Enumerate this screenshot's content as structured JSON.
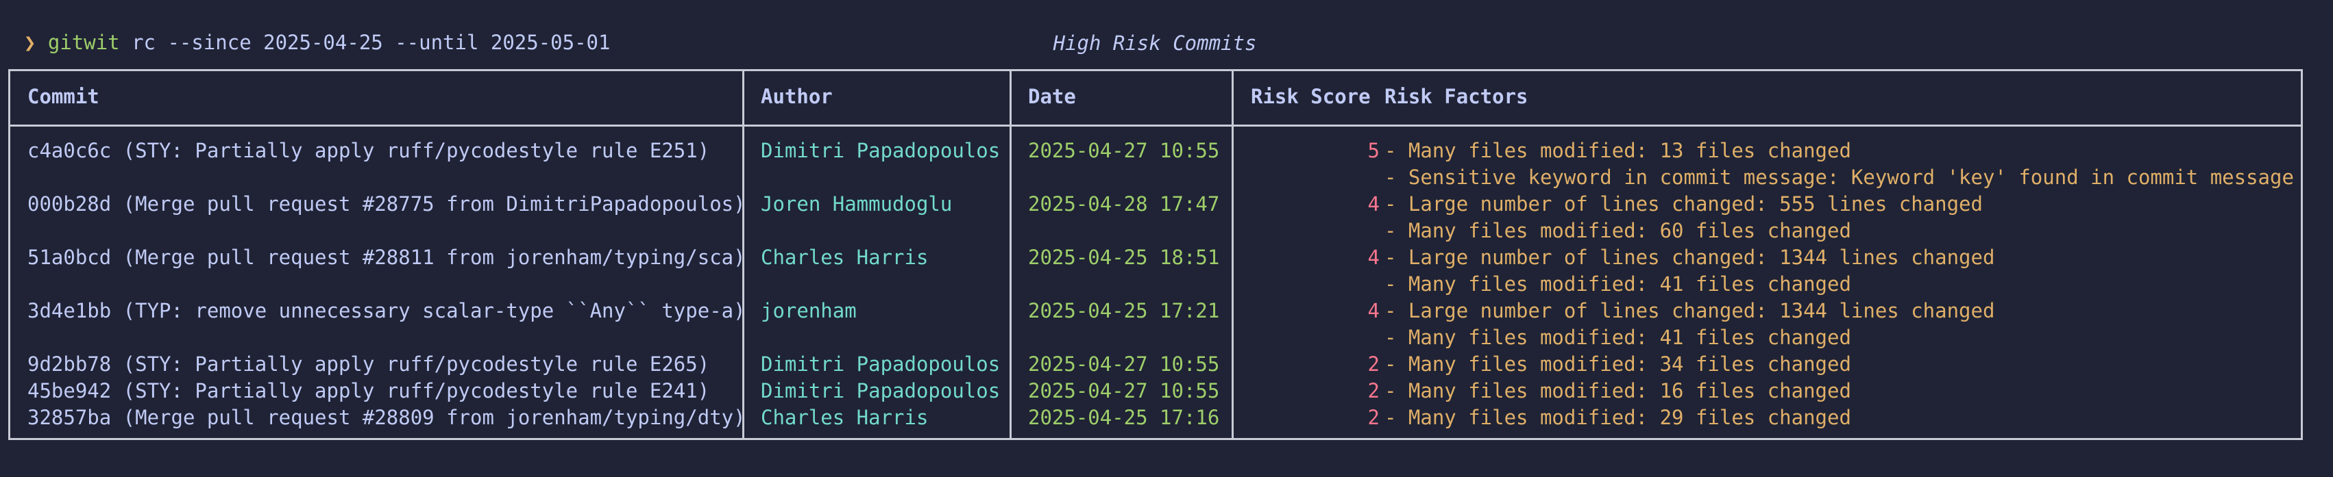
{
  "prompt": {
    "arrow": "❯",
    "command": "gitwit",
    "args": " rc --since 2025-04-25 --until 2025-05-01"
  },
  "table": {
    "title": "High Risk Commits",
    "headers": {
      "commit": "Commit",
      "author": "Author",
      "date": "Date",
      "score": "Risk Score",
      "factors": "Risk Factors"
    },
    "rows": [
      {
        "commit": "c4a0c6c (STY: Partially apply ruff/pycodestyle rule E251)",
        "author": "Dimitri Papadopoulos",
        "date": "2025-04-27 10:55",
        "score": "5",
        "factors": [
          "- Many files modified: 13 files changed",
          "- Sensitive keyword in commit message: Keyword 'key' found in commit message"
        ]
      },
      {
        "commit": "000b28d (Merge pull request #28775 from DimitriPapadopoulos)",
        "author": "Joren Hammudoglu",
        "date": "2025-04-28 17:47",
        "score": "4",
        "factors": [
          "- Large number of lines changed: 555 lines changed",
          "- Many files modified: 60 files changed"
        ]
      },
      {
        "commit": "51a0bcd (Merge pull request #28811 from jorenham/typing/sca)",
        "author": "Charles Harris",
        "date": "2025-04-25 18:51",
        "score": "4",
        "factors": [
          "- Large number of lines changed: 1344 lines changed",
          "- Many files modified: 41 files changed"
        ]
      },
      {
        "commit": "3d4e1bb (TYP: remove unnecessary scalar-type ``Any`` type-a)",
        "author": "jorenham",
        "date": "2025-04-25 17:21",
        "score": "4",
        "factors": [
          "- Large number of lines changed: 1344 lines changed",
          "- Many files modified: 41 files changed"
        ]
      },
      {
        "commit": "9d2bb78 (STY: Partially apply ruff/pycodestyle rule E265)",
        "author": "Dimitri Papadopoulos",
        "date": "2025-04-27 10:55",
        "score": "2",
        "factors": [
          "- Many files modified: 34 files changed"
        ]
      },
      {
        "commit": "45be942 (STY: Partially apply ruff/pycodestyle rule E241)",
        "author": "Dimitri Papadopoulos",
        "date": "2025-04-27 10:55",
        "score": "2",
        "factors": [
          "- Many files modified: 16 files changed"
        ]
      },
      {
        "commit": "32857ba (Merge pull request #28809 from jorenham/typing/dty)",
        "author": "Charles Harris",
        "date": "2025-04-25 17:16",
        "score": "2",
        "factors": [
          "- Many files modified: 29 files changed"
        ]
      }
    ]
  },
  "colors": {
    "background": "#1f2335",
    "text": "#c0caf5",
    "border": "#c8cbd6",
    "author": "#73daca",
    "date": "#9ece6a",
    "score": "#f7768e",
    "factor": "#e0af68",
    "prompt_arrow": "#e0af68",
    "command": "#9ece6a"
  }
}
